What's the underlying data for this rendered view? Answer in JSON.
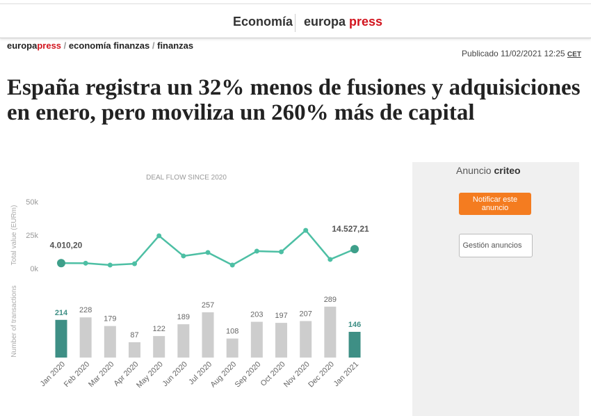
{
  "header": {
    "section": "Economía",
    "logo_a": "europa",
    "logo_b": "press"
  },
  "breadcrumb": {
    "site_a": "europa",
    "site_b": "press",
    "items": [
      "economía finanzas",
      "finanzas"
    ]
  },
  "published": {
    "text": "Publicado 11/02/2021 12:25",
    "tz": "CET"
  },
  "article": {
    "title": "España registra un 32% menos de fusiones y adquisiciones en enero, pero moviliza un 260% más de capital"
  },
  "ad": {
    "label": "Anuncio",
    "brand": "criteo",
    "button": "Notificar este anuncio",
    "manage": "Gestión anuncios"
  },
  "chart_data": [
    {
      "type": "line",
      "title": "DEAL FLOW SINCE 2020",
      "y_label": "Total value (EURm)",
      "color": "#4dbfa4",
      "values": [
        4010.2,
        4000,
        2600,
        3600,
        24500,
        9400,
        12000,
        2600,
        13000,
        12500,
        28600,
        6800,
        14527.21
      ],
      "value_labels": [
        "4.010,20",
        null,
        null,
        null,
        null,
        null,
        null,
        null,
        null,
        null,
        null,
        null,
        "14.527,21"
      ],
      "ylim": [
        0,
        50000
      ],
      "yticks": [
        {
          "value": 50000,
          "label": "50k"
        },
        {
          "value": 25000,
          "label": "25k"
        },
        {
          "value": 0,
          "label": "0k"
        }
      ],
      "grid": false
    },
    {
      "type": "bar",
      "y_label": "Number of transactions",
      "categories": [
        "Jan 2020",
        "Feb 2020",
        "Mar 2020",
        "Apr 2020",
        "May 2020",
        "Jun 2020",
        "Jul 2020",
        "Aug 2020",
        "Sep 2020",
        "Oct 2020",
        "Nov 2020",
        "Dec 2020",
        "Jan 2021"
      ],
      "values": [
        214,
        228,
        179,
        87,
        122,
        189,
        257,
        108,
        203,
        197,
        207,
        289,
        146
      ],
      "colors": [
        "#3e8f85",
        "#cdcdcd",
        "#cdcdcd",
        "#cdcdcd",
        "#cdcdcd",
        "#cdcdcd",
        "#cdcdcd",
        "#cdcdcd",
        "#cdcdcd",
        "#cdcdcd",
        "#cdcdcd",
        "#cdcdcd",
        "#3e8f85"
      ],
      "ylim": [
        0,
        300
      ]
    }
  ]
}
